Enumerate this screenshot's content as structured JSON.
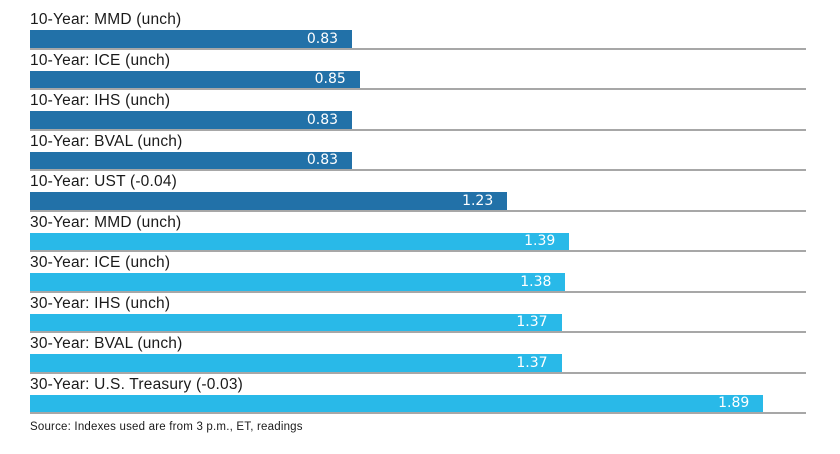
{
  "chart_data": {
    "type": "bar",
    "orientation": "horizontal",
    "title": "",
    "xlabel": "",
    "ylabel": "",
    "xlim": [
      0,
      2.0
    ],
    "grid": "gray rule under each bar spanning full chart width",
    "legend": "none",
    "categories": [
      "10-Year: MMD (unch)",
      "10-Year: ICE (unch)",
      "10-Year: IHS (unch)",
      "10-Year: BVAL (unch)",
      "10-Year: UST (-0.04)",
      "30-Year: MMD (unch)",
      "30-Year: ICE (unch)",
      "30-Year: IHS (unch)",
      "30-Year: BVAL (unch)",
      "30-Year: U.S. Treasury (-0.03)"
    ],
    "values": [
      0.83,
      0.85,
      0.83,
      0.83,
      1.23,
      1.39,
      1.38,
      1.37,
      1.37,
      1.89
    ],
    "rows": [
      {
        "label": "10-Year: MMD (unch)",
        "value": 0.83,
        "display": "0.83",
        "group": "10-year"
      },
      {
        "label": "10-Year: ICE (unch)",
        "value": 0.85,
        "display": "0.85",
        "group": "10-year"
      },
      {
        "label": "10-Year: IHS (unch)",
        "value": 0.83,
        "display": "0.83",
        "group": "10-year"
      },
      {
        "label": "10-Year: BVAL (unch)",
        "value": 0.83,
        "display": "0.83",
        "group": "10-year"
      },
      {
        "label": "10-Year: UST (-0.04)",
        "value": 1.23,
        "display": "1.23",
        "group": "10-year"
      },
      {
        "label": "30-Year: MMD (unch)",
        "value": 1.39,
        "display": "1.39",
        "group": "30-year"
      },
      {
        "label": "30-Year: ICE (unch)",
        "value": 1.38,
        "display": "1.38",
        "group": "30-year"
      },
      {
        "label": "30-Year: IHS (unch)",
        "value": 1.37,
        "display": "1.37",
        "group": "30-year"
      },
      {
        "label": "30-Year: BVAL (unch)",
        "value": 1.37,
        "display": "1.37",
        "group": "30-year"
      },
      {
        "label": "30-Year: U.S. Treasury (-0.03)",
        "value": 1.89,
        "display": "1.89",
        "group": "30-year"
      }
    ],
    "colors": {
      "10-year": "#2271a8",
      "30-year": "#29b9e8",
      "rule": "#a7a7a7",
      "value_text": "#ffffff",
      "label_text": "#1a1a1a"
    }
  },
  "footer": {
    "source": "Source: Indexes used are from 3 p.m., ET, readings"
  }
}
